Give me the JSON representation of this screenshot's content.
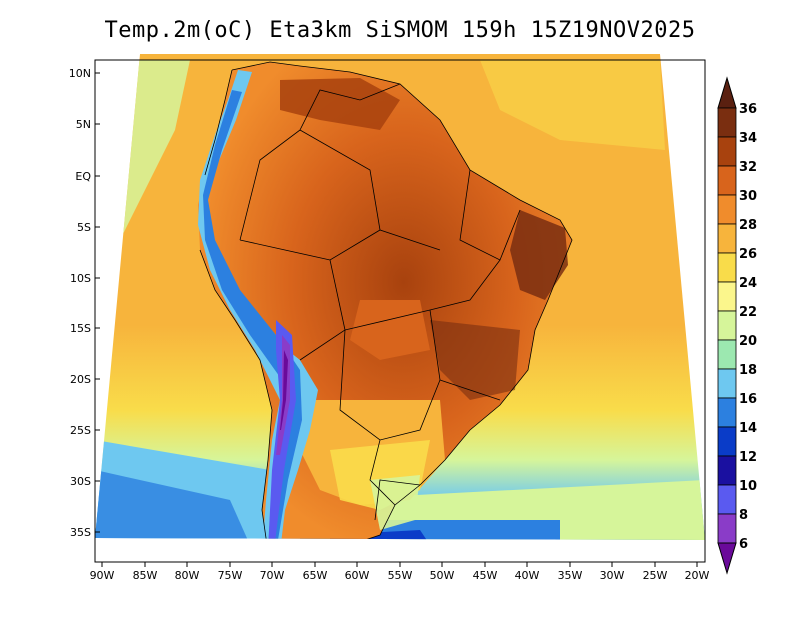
{
  "title": "Temp.2m(oC) Eta3km SiSMOM 159h 15Z19NOV2025",
  "lat_labels": [
    "10N",
    "5N",
    "EQ",
    "5S",
    "10S",
    "15S",
    "20S",
    "25S",
    "30S",
    "35S"
  ],
  "lon_labels": [
    "90W",
    "85W",
    "80W",
    "75W",
    "70W",
    "65W",
    "60W",
    "55W",
    "50W",
    "45W",
    "40W",
    "35W",
    "30W",
    "25W",
    "20W"
  ],
  "colorbar": {
    "labels": [
      "36",
      "34",
      "32",
      "30",
      "28",
      "26",
      "24",
      "22",
      "20",
      "18",
      "16",
      "14",
      "12",
      "10",
      "8",
      "6"
    ],
    "colors": [
      "#5a2010",
      "#7a2e10",
      "#a8420e",
      "#d8641c",
      "#f08c2c",
      "#f7b43c",
      "#f9dc4a",
      "#fbf68c",
      "#d6f59a",
      "#9ce8b0",
      "#6ec8f0",
      "#2c80e0",
      "#0a3cc8",
      "#1a10a0",
      "#5a5af0",
      "#8a3cc8",
      "#6a0a9a"
    ]
  },
  "chart_data": {
    "type": "heatmap",
    "title": "Temp.2m(oC) Eta3km SiSMOM 159h 15Z19NOV2025",
    "variable": "Temp.2m",
    "units": "oC",
    "x_ticks": [
      "90W",
      "85W",
      "80W",
      "75W",
      "70W",
      "65W",
      "60W",
      "55W",
      "50W",
      "45W",
      "40W",
      "35W",
      "30W",
      "25W",
      "20W"
    ],
    "y_ticks": [
      "10N",
      "5N",
      "EQ",
      "5S",
      "10S",
      "15S",
      "20S",
      "25S",
      "30S",
      "35S"
    ],
    "xlim": [
      -90,
      -20
    ],
    "ylim": [
      -38,
      12
    ],
    "color_levels": [
      6,
      8,
      10,
      12,
      14,
      16,
      18,
      20,
      22,
      24,
      26,
      28,
      30,
      32,
      34,
      36
    ]
  }
}
